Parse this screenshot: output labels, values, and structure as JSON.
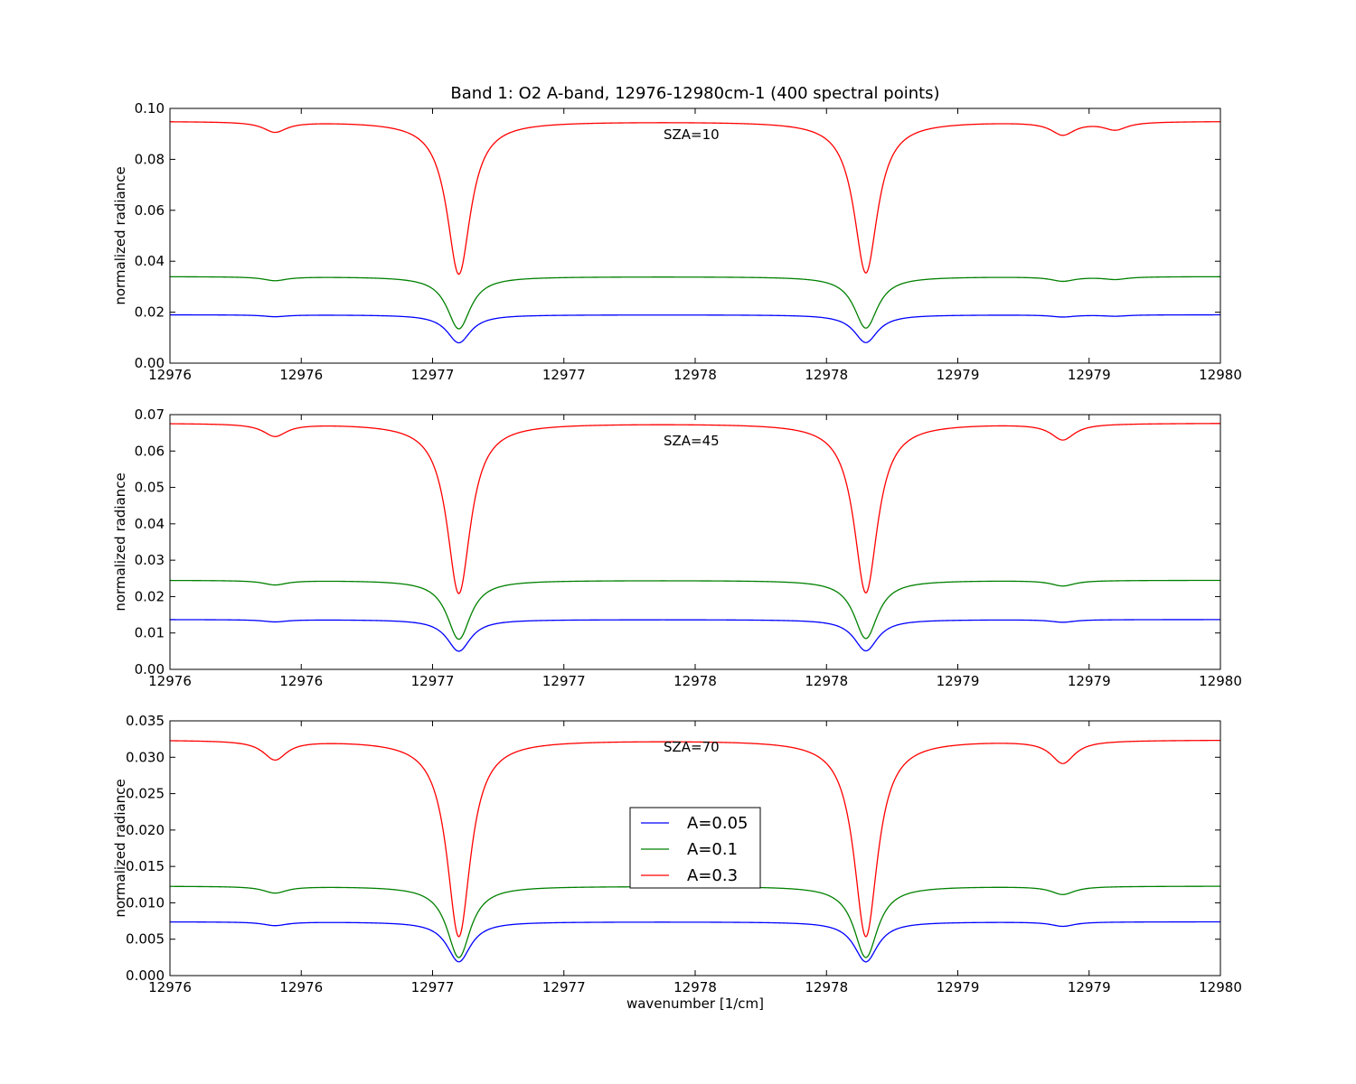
{
  "chart_data": {
    "type": "line",
    "title": "Band 1: O2 A-band, 12976-12980cm-1 (400 spectral points)",
    "xlabel": "wavenumber [1/cm]",
    "ylabel": "normalized radiance",
    "xlim": [
      12976,
      12980
    ],
    "x_tick_values": [
      12976,
      12976.5,
      12977,
      12977.5,
      12978,
      12978.5,
      12979,
      12979.5,
      12980
    ],
    "x_tick_labels": [
      "12976",
      "12976",
      "12977",
      "12977",
      "12978",
      "12978",
      "12979",
      "12979",
      "12980"
    ],
    "grid": false,
    "legend_location": "lower-center of bottom panel",
    "series_styles": [
      {
        "name": "A=0.05",
        "color": "#0000ff"
      },
      {
        "name": "A=0.1",
        "color": "#008000"
      },
      {
        "name": "A=0.3",
        "color": "#ff0000"
      }
    ],
    "panels": [
      {
        "annotation": "SZA=10",
        "ylim": [
          0,
          0.1
        ],
        "y_ticks": [
          "0.00",
          "0.02",
          "0.04",
          "0.06",
          "0.08",
          "0.10"
        ],
        "series": [
          {
            "name": "A=0.05",
            "baseline": 0.019,
            "lines": [
              {
                "x": 12976.4,
                "min": 0.0183
              },
              {
                "x": 12977.1,
                "min": 0.008
              },
              {
                "x": 12978.65,
                "min": 0.0081
              },
              {
                "x": 12979.4,
                "min": 0.0182
              },
              {
                "x": 12979.6,
                "min": 0.0185
              }
            ]
          },
          {
            "name": "A=0.1",
            "baseline": 0.034,
            "lines": [
              {
                "x": 12976.4,
                "min": 0.0325
              },
              {
                "x": 12977.1,
                "min": 0.0135
              },
              {
                "x": 12978.65,
                "min": 0.0138
              },
              {
                "x": 12979.4,
                "min": 0.0323
              },
              {
                "x": 12979.6,
                "min": 0.033
              }
            ]
          },
          {
            "name": "A=0.3",
            "baseline": 0.095,
            "lines": [
              {
                "x": 12976.4,
                "min": 0.091
              },
              {
                "x": 12977.1,
                "min": 0.035
              },
              {
                "x": 12978.65,
                "min": 0.0355
              },
              {
                "x": 12979.4,
                "min": 0.09
              },
              {
                "x": 12979.6,
                "min": 0.092
              }
            ]
          }
        ]
      },
      {
        "annotation": "SZA=45",
        "ylim": [
          0,
          0.07
        ],
        "y_ticks": [
          "0.00",
          "0.01",
          "0.02",
          "0.03",
          "0.04",
          "0.05",
          "0.06",
          "0.07"
        ],
        "series": [
          {
            "name": "A=0.05",
            "baseline": 0.0137,
            "lines": [
              {
                "x": 12976.4,
                "min": 0.0131
              },
              {
                "x": 12977.1,
                "min": 0.005
              },
              {
                "x": 12978.65,
                "min": 0.0051
              },
              {
                "x": 12979.4,
                "min": 0.013
              }
            ]
          },
          {
            "name": "A=0.1",
            "baseline": 0.0245,
            "lines": [
              {
                "x": 12976.4,
                "min": 0.0233
              },
              {
                "x": 12977.1,
                "min": 0.0083
              },
              {
                "x": 12978.65,
                "min": 0.0085
              },
              {
                "x": 12979.4,
                "min": 0.023
              }
            ]
          },
          {
            "name": "A=0.3",
            "baseline": 0.0677,
            "lines": [
              {
                "x": 12976.4,
                "min": 0.0643
              },
              {
                "x": 12977.1,
                "min": 0.0209
              },
              {
                "x": 12978.65,
                "min": 0.0211
              },
              {
                "x": 12979.4,
                "min": 0.0633
              }
            ]
          }
        ]
      },
      {
        "annotation": "SZA=70",
        "ylim": [
          0,
          0.035
        ],
        "y_ticks": [
          "0.000",
          "0.005",
          "0.010",
          "0.015",
          "0.020",
          "0.025",
          "0.030",
          "0.035"
        ],
        "series": [
          {
            "name": "A=0.05",
            "baseline": 0.0074,
            "lines": [
              {
                "x": 12976.4,
                "min": 0.0069
              },
              {
                "x": 12977.1,
                "min": 0.0019
              },
              {
                "x": 12978.65,
                "min": 0.0019
              },
              {
                "x": 12979.4,
                "min": 0.0068
              }
            ]
          },
          {
            "name": "A=0.1",
            "baseline": 0.0123,
            "lines": [
              {
                "x": 12976.4,
                "min": 0.0114
              },
              {
                "x": 12977.1,
                "min": 0.0025
              },
              {
                "x": 12978.65,
                "min": 0.0025
              },
              {
                "x": 12979.4,
                "min": 0.0112
              }
            ]
          },
          {
            "name": "A=0.3",
            "baseline": 0.0324,
            "lines": [
              {
                "x": 12976.4,
                "min": 0.0298
              },
              {
                "x": 12977.1,
                "min": 0.0054
              },
              {
                "x": 12978.65,
                "min": 0.0054
              },
              {
                "x": 12979.4,
                "min": 0.0293
              }
            ]
          }
        ]
      }
    ]
  }
}
